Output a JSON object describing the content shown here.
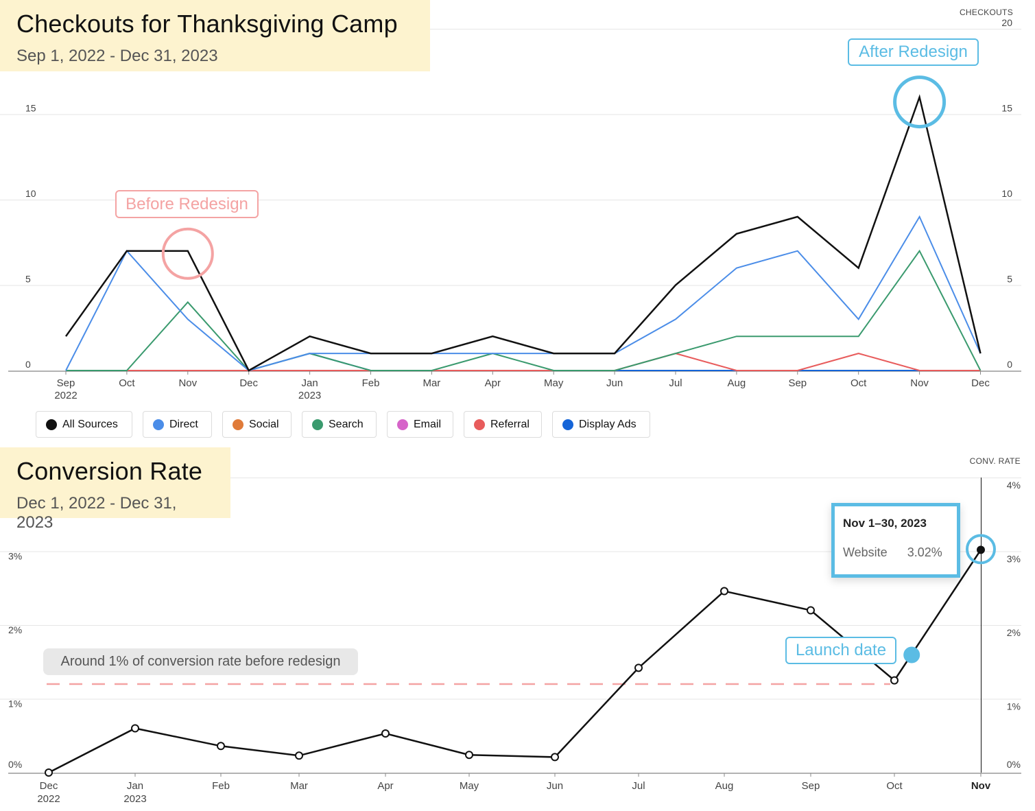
{
  "chart_data": [
    {
      "type": "line",
      "title": "Checkouts for Thanksgiving Camp",
      "subtitle": "Sep 1, 2022 - Dec 31, 2023",
      "ylabel": "CHECKOUTS",
      "ylim": [
        0,
        20
      ],
      "y_ticks_left": [
        "0",
        "5",
        "10",
        "15"
      ],
      "y_ticks_right": [
        "0",
        "5",
        "10",
        "15",
        "20"
      ],
      "x_labels": [
        {
          "label": "Sep",
          "year": "2022"
        },
        {
          "label": "Oct",
          "year": ""
        },
        {
          "label": "Nov",
          "year": ""
        },
        {
          "label": "Dec",
          "year": ""
        },
        {
          "label": "Jan",
          "year": "2023"
        },
        {
          "label": "Feb",
          "year": ""
        },
        {
          "label": "Mar",
          "year": ""
        },
        {
          "label": "Apr",
          "year": ""
        },
        {
          "label": "May",
          "year": ""
        },
        {
          "label": "Jun",
          "year": ""
        },
        {
          "label": "Jul",
          "year": ""
        },
        {
          "label": "Aug",
          "year": ""
        },
        {
          "label": "Sep",
          "year": ""
        },
        {
          "label": "Oct",
          "year": ""
        },
        {
          "label": "Nov",
          "year": ""
        },
        {
          "label": "Dec",
          "year": ""
        }
      ],
      "series": [
        {
          "name": "All Sources",
          "color": "#111111",
          "values": [
            2,
            7,
            7,
            0,
            2,
            1,
            1,
            2,
            1,
            1,
            5,
            8,
            9,
            6,
            16,
            1
          ]
        },
        {
          "name": "Direct",
          "color": "#4b8de8",
          "values": [
            0,
            7,
            3,
            0,
            1,
            1,
            1,
            1,
            1,
            1,
            3,
            6,
            7,
            3,
            9,
            1
          ]
        },
        {
          "name": "Social",
          "color": "#e07b39",
          "values": [
            0,
            0,
            0,
            0,
            0,
            0,
            0,
            0,
            0,
            0,
            0,
            0,
            0,
            0,
            0,
            0
          ]
        },
        {
          "name": "Search",
          "color": "#3a9a6e",
          "values": [
            0,
            0,
            4,
            0,
            1,
            0,
            0,
            1,
            0,
            0,
            1,
            2,
            2,
            2,
            7,
            0
          ]
        },
        {
          "name": "Email",
          "color": "#d664c9",
          "values": [
            0,
            0,
            0,
            0,
            0,
            0,
            0,
            0,
            0,
            0,
            0,
            0,
            0,
            0,
            0,
            0
          ]
        },
        {
          "name": "Referral",
          "color": "#e85c5c",
          "values": [
            0,
            0,
            0,
            0,
            0,
            0,
            0,
            0,
            0,
            0,
            1,
            0,
            0,
            1,
            0,
            0
          ]
        },
        {
          "name": "Display Ads",
          "color": "#1565d8",
          "values": [
            0,
            0,
            0,
            0,
            1,
            0,
            0,
            0,
            0,
            0,
            0,
            0,
            0,
            0,
            0,
            0
          ]
        }
      ],
      "annotations": [
        {
          "text": "Before Redesign",
          "color": "#f4a3a3",
          "at_index": 2
        },
        {
          "text": "After Redesign",
          "color": "#5bbce4",
          "at_index": 14
        }
      ]
    },
    {
      "type": "line",
      "title": "Conversion Rate",
      "subtitle": "Dec 1, 2022 - Dec 31, 2023",
      "ylabel": "CONV. RATE",
      "ylim": [
        0,
        4
      ],
      "y_ticks": [
        "0%",
        "1%",
        "2%",
        "3%",
        "4%"
      ],
      "y_ticks_left": [
        "0%",
        "1%",
        "2%",
        "3%"
      ],
      "x_labels": [
        {
          "label": "Dec",
          "year": "2022"
        },
        {
          "label": "Jan",
          "year": "2023"
        },
        {
          "label": "Feb",
          "year": ""
        },
        {
          "label": "Mar",
          "year": ""
        },
        {
          "label": "Apr",
          "year": ""
        },
        {
          "label": "May",
          "year": ""
        },
        {
          "label": "Jun",
          "year": ""
        },
        {
          "label": "Jul",
          "year": ""
        },
        {
          "label": "Aug",
          "year": ""
        },
        {
          "label": "Sep",
          "year": ""
        },
        {
          "label": "Oct",
          "year": ""
        },
        {
          "label": "Nov",
          "year": ""
        }
      ],
      "series": [
        {
          "name": "Website",
          "color": "#111111",
          "values": [
            0.0,
            0.6,
            0.36,
            0.23,
            0.53,
            0.24,
            0.21,
            1.42,
            2.46,
            2.2,
            1.25,
            3.02
          ]
        }
      ],
      "baseline": {
        "value": 1.2,
        "text": "Around 1% of conversion rate before redesign",
        "color": "#f4a3a3"
      },
      "launch_marker": {
        "text": "Launch date",
        "color": "#5bbce4",
        "value": 1.6,
        "position": 10.2
      },
      "tooltip": {
        "title": "Nov 1–30, 2023",
        "label": "Website",
        "value": "3.02%"
      }
    }
  ]
}
